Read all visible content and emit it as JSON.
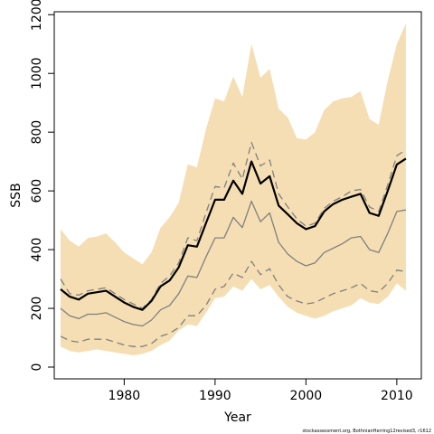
{
  "chart_data": {
    "type": "area",
    "xlabel": "Year",
    "ylabel": "SSB",
    "xlim": [
      1972.3,
      2012.7
    ],
    "ylim": [
      -40,
      1210
    ],
    "x_ticks": [
      1980,
      1990,
      2000,
      2010
    ],
    "y_ticks": [
      0,
      200,
      400,
      600,
      800,
      1000,
      1200
    ],
    "grid": false,
    "legend": "none",
    "footnote": "stockassessment.org, BothnianHerring12revised3, r1612",
    "x": [
      1973,
      1974,
      1975,
      1976,
      1977,
      1978,
      1979,
      1980,
      1981,
      1982,
      1983,
      1984,
      1985,
      1986,
      1987,
      1988,
      1989,
      1990,
      1991,
      1992,
      1993,
      1994,
      1995,
      1996,
      1997,
      1998,
      1999,
      2000,
      2001,
      2002,
      2003,
      2004,
      2005,
      2006,
      2007,
      2008,
      2009,
      2010,
      2011
    ],
    "series": [
      {
        "role": "outer-band-upper",
        "values": [
          470,
          430,
          410,
          440,
          445,
          455,
          425,
          390,
          370,
          350,
          390,
          475,
          510,
          560,
          690,
          680,
          810,
          915,
          905,
          990,
          920,
          1100,
          985,
          1015,
          880,
          850,
          780,
          775,
          800,
          875,
          905,
          915,
          920,
          940,
          845,
          825,
          975,
          1100,
          1170
        ]
      },
      {
        "role": "outer-band-lower",
        "values": [
          70,
          55,
          50,
          55,
          60,
          55,
          50,
          45,
          40,
          45,
          55,
          75,
          90,
          125,
          145,
          140,
          185,
          235,
          240,
          275,
          260,
          300,
          265,
          280,
          240,
          205,
          185,
          175,
          165,
          175,
          190,
          200,
          210,
          235,
          220,
          215,
          240,
          285,
          260
        ]
      },
      {
        "role": "estimate",
        "color": "#000000",
        "values": [
          265,
          240,
          230,
          250,
          255,
          260,
          240,
          220,
          205,
          195,
          225,
          275,
          295,
          340,
          415,
          410,
          490,
          570,
          570,
          635,
          590,
          700,
          625,
          650,
          550,
          520,
          490,
          470,
          480,
          530,
          555,
          570,
          580,
          590,
          525,
          515,
          600,
          690,
          710
        ]
      },
      {
        "role": "ci-upper",
        "color": "#808080",
        "values": [
          300,
          250,
          245,
          260,
          265,
          270,
          250,
          230,
          215,
          200,
          230,
          285,
          310,
          355,
          440,
          430,
          525,
          615,
          610,
          695,
          640,
          765,
          685,
          705,
          590,
          545,
          505,
          480,
          490,
          540,
          565,
          580,
          600,
          605,
          545,
          530,
          620,
          720,
          740
        ]
      },
      {
        "role": "ci-lower",
        "color": "#808080",
        "values": [
          105,
          90,
          85,
          95,
          95,
          95,
          85,
          75,
          70,
          70,
          80,
          105,
          115,
          135,
          175,
          175,
          210,
          265,
          275,
          320,
          305,
          360,
          315,
          335,
          280,
          240,
          225,
          215,
          220,
          235,
          250,
          260,
          270,
          285,
          260,
          255,
          285,
          330,
          325
        ]
      },
      {
        "role": "median",
        "color": "#808080",
        "values": [
          200,
          175,
          165,
          180,
          180,
          185,
          170,
          155,
          145,
          140,
          160,
          195,
          210,
          250,
          310,
          305,
          375,
          440,
          440,
          510,
          475,
          565,
          495,
          525,
          425,
          385,
          360,
          345,
          355,
          390,
          405,
          420,
          440,
          445,
          400,
          390,
          455,
          530,
          535
        ]
      }
    ]
  }
}
